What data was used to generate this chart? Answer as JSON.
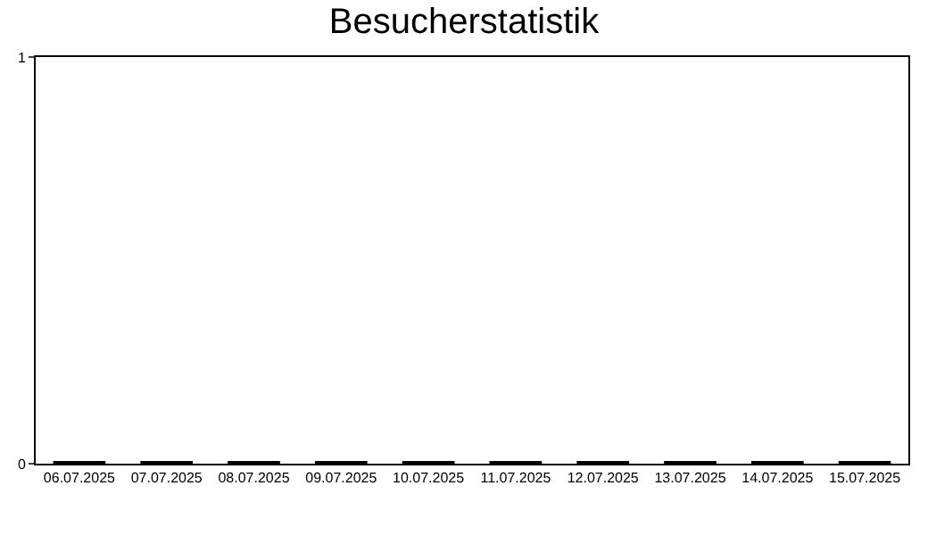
{
  "chart_data": {
    "type": "bar",
    "title": "Besucherstatistik",
    "categories": [
      "06.07.2025",
      "07.07.2025",
      "08.07.2025",
      "09.07.2025",
      "10.07.2025",
      "11.07.2025",
      "12.07.2025",
      "13.07.2025",
      "14.07.2025",
      "15.07.2025"
    ],
    "values": [
      0,
      0,
      0,
      0,
      0,
      0,
      0,
      0,
      0,
      0
    ],
    "color": "#000000",
    "ylim": [
      0,
      1
    ],
    "yticks": [
      0,
      1
    ]
  }
}
